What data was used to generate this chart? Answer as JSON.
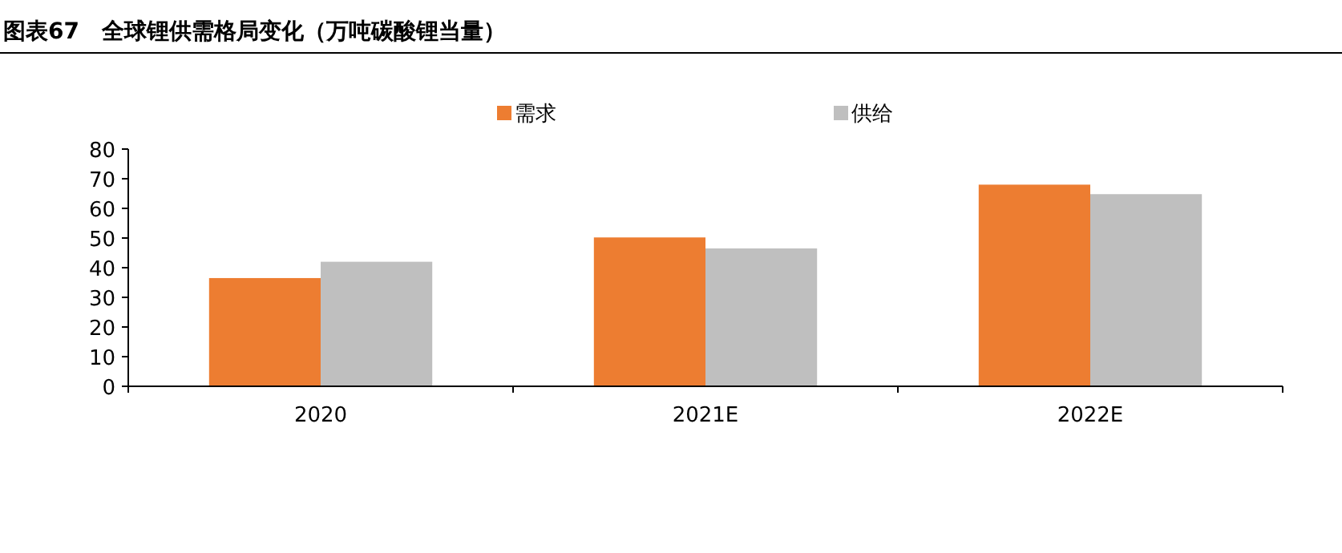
{
  "chart_data": {
    "type": "bar",
    "title": "图表67　全球锂供需格局变化（万吨碳酸锂当量）",
    "categories": [
      "2020",
      "2021E",
      "2022E"
    ],
    "series": [
      {
        "name": "需求",
        "color": "#ed7d31",
        "values": [
          36.5,
          50.2,
          68
        ]
      },
      {
        "name": "供给",
        "color": "#bfbfbf",
        "values": [
          42,
          46.5,
          64.8
        ]
      }
    ],
    "ylim": [
      0,
      80
    ],
    "yticks": [
      0,
      10,
      20,
      30,
      40,
      50,
      60,
      70,
      80
    ],
    "legend": "top",
    "grid": false
  }
}
